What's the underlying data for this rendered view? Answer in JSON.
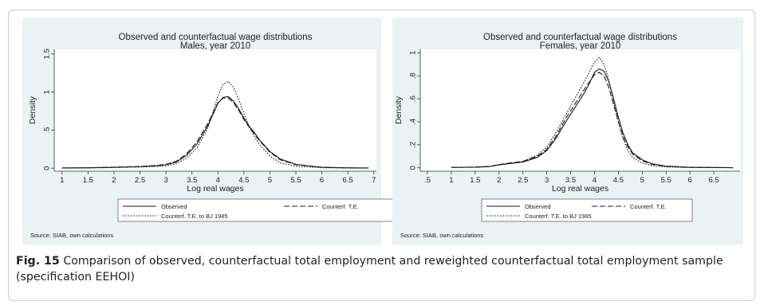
{
  "caption": {
    "label": "Fig. 15",
    "text": "Comparison of observed, counterfactual total employment and reweighted counterfactual total employment sample (specification EEHOI)"
  },
  "colors": {
    "panel_bg": "#eaf2f3",
    "plot_bg": "#ffffff",
    "line": "#1a1a1a",
    "axis": "#333333",
    "text": "#222222"
  },
  "chart_data": [
    {
      "type": "line",
      "title": "Observed and counterfactual wage distributions",
      "subtitle": "Males, year 2010",
      "xlabel": "Log real wages",
      "ylabel": "Density",
      "xlim": [
        0.85,
        7.05
      ],
      "ylim": [
        -0.04,
        1.56
      ],
      "xticks": [
        1,
        1.5,
        2,
        2.5,
        3,
        3.5,
        4,
        4.5,
        5,
        5.5,
        6,
        6.5,
        7
      ],
      "xtick_labels": [
        "1",
        "1.5",
        "2",
        "2.5",
        "3",
        "3.5",
        "4",
        "4.5",
        "5",
        "5.5",
        "6",
        "6.5",
        "7"
      ],
      "yticks": [
        0,
        0.5,
        1,
        1.5
      ],
      "ytick_labels": [
        "0",
        ".5",
        "1",
        "1.5"
      ],
      "grid": false,
      "legend_position": "bottom",
      "source": "Source: SIAB, own calculations",
      "series": [
        {
          "name": "Observed",
          "style": "solid",
          "x": [
            1,
            1.5,
            2,
            2.5,
            2.8,
            3,
            3.2,
            3.4,
            3.6,
            3.8,
            3.9,
            4,
            4.1,
            4.2,
            4.3,
            4.4,
            4.5,
            4.6,
            4.7,
            4.8,
            5,
            5.2,
            5.5,
            6,
            6.5,
            6.9
          ],
          "y": [
            0.002,
            0.005,
            0.012,
            0.02,
            0.03,
            0.045,
            0.08,
            0.17,
            0.32,
            0.55,
            0.7,
            0.85,
            0.93,
            0.94,
            0.88,
            0.78,
            0.66,
            0.55,
            0.47,
            0.37,
            0.22,
            0.12,
            0.05,
            0.012,
            0.004,
            0.002
          ]
        },
        {
          "name": "Counterf. T.E.",
          "style": "dashed",
          "x": [
            1,
            1.5,
            2,
            2.5,
            2.8,
            3,
            3.2,
            3.4,
            3.6,
            3.8,
            3.9,
            4,
            4.1,
            4.2,
            4.3,
            4.4,
            4.5,
            4.6,
            4.7,
            4.8,
            5,
            5.2,
            5.5,
            6,
            6.5,
            6.9
          ],
          "y": [
            0.002,
            0.005,
            0.013,
            0.022,
            0.035,
            0.05,
            0.09,
            0.19,
            0.35,
            0.58,
            0.72,
            0.86,
            0.92,
            0.92,
            0.86,
            0.76,
            0.64,
            0.54,
            0.45,
            0.36,
            0.21,
            0.11,
            0.045,
            0.011,
            0.004,
            0.002
          ]
        },
        {
          "name": "Counterf. T.E. to BJ 1985",
          "style": "dotted",
          "x": [
            1,
            1.5,
            2,
            2.5,
            2.8,
            3,
            3.2,
            3.4,
            3.6,
            3.8,
            3.9,
            4,
            4.1,
            4.2,
            4.3,
            4.4,
            4.5,
            4.6,
            4.7,
            4.8,
            5,
            5.2,
            5.5,
            6,
            6.5,
            6.9
          ],
          "y": [
            0.001,
            0.003,
            0.008,
            0.015,
            0.022,
            0.03,
            0.06,
            0.13,
            0.27,
            0.52,
            0.72,
            0.95,
            1.1,
            1.14,
            1.06,
            0.9,
            0.72,
            0.55,
            0.42,
            0.31,
            0.16,
            0.07,
            0.025,
            0.006,
            0.002,
            0.001
          ]
        }
      ]
    },
    {
      "type": "line",
      "title": "Observed and counterfactual wage distributions",
      "subtitle": "Females, year 2010",
      "xlabel": "Log real wages",
      "ylabel": "Density",
      "xlim": [
        0.35,
        7.05
      ],
      "ylim": [
        -0.03,
        1.03
      ],
      "xticks": [
        0.5,
        1,
        1.5,
        2,
        2.5,
        3,
        3.5,
        4,
        4.5,
        5,
        5.5,
        6,
        6.5
      ],
      "xtick_labels": [
        ".5",
        "1",
        "1.5",
        "2",
        "2.5",
        "3",
        "3.5",
        "4",
        "4.5",
        "5",
        "5.5",
        "6",
        "6.5"
      ],
      "yticks": [
        0,
        0.2,
        0.4,
        0.6,
        0.8,
        1
      ],
      "ytick_labels": [
        "0",
        ".2",
        ".4",
        ".6",
        ".8",
        "1"
      ],
      "grid": false,
      "legend_position": "bottom",
      "source": "Source: SIAB, own calculations",
      "series": [
        {
          "name": "Observed",
          "style": "solid",
          "x": [
            1,
            1.5,
            1.8,
            2,
            2.2,
            2.5,
            2.8,
            3,
            3.2,
            3.4,
            3.6,
            3.8,
            3.9,
            4,
            4.1,
            4.2,
            4.3,
            4.4,
            4.5,
            4.6,
            4.7,
            4.8,
            5,
            5.2,
            5.5,
            6,
            6.9
          ],
          "y": [
            0.003,
            0.005,
            0.01,
            0.025,
            0.035,
            0.05,
            0.09,
            0.15,
            0.26,
            0.4,
            0.53,
            0.66,
            0.74,
            0.83,
            0.86,
            0.84,
            0.75,
            0.6,
            0.44,
            0.3,
            0.2,
            0.13,
            0.07,
            0.035,
            0.015,
            0.004,
            0.001
          ]
        },
        {
          "name": "Counterf. T.E.",
          "style": "dashed",
          "x": [
            1,
            1.5,
            1.8,
            2,
            2.2,
            2.5,
            2.8,
            3,
            3.2,
            3.4,
            3.6,
            3.8,
            3.9,
            4,
            4.1,
            4.2,
            4.3,
            4.4,
            4.5,
            4.6,
            4.7,
            4.8,
            5,
            5.2,
            5.5,
            6,
            6.9
          ],
          "y": [
            0.003,
            0.006,
            0.012,
            0.028,
            0.04,
            0.055,
            0.1,
            0.16,
            0.28,
            0.43,
            0.56,
            0.69,
            0.75,
            0.81,
            0.83,
            0.8,
            0.7,
            0.55,
            0.4,
            0.27,
            0.18,
            0.12,
            0.06,
            0.03,
            0.012,
            0.003,
            0.001
          ]
        },
        {
          "name": "Counterf. T.E. to BJ 1985",
          "style": "dotted",
          "x": [
            1,
            1.5,
            1.8,
            2,
            2.2,
            2.5,
            2.8,
            3,
            3.2,
            3.4,
            3.6,
            3.8,
            3.9,
            4,
            4.1,
            4.2,
            4.3,
            4.4,
            4.5,
            4.6,
            4.7,
            4.8,
            5,
            5.2,
            5.5,
            6,
            6.9
          ],
          "y": [
            0.002,
            0.005,
            0.01,
            0.025,
            0.038,
            0.055,
            0.11,
            0.18,
            0.31,
            0.46,
            0.61,
            0.76,
            0.84,
            0.92,
            0.96,
            0.9,
            0.76,
            0.58,
            0.4,
            0.25,
            0.15,
            0.09,
            0.04,
            0.018,
            0.007,
            0.002,
            0.001
          ]
        }
      ]
    }
  ]
}
